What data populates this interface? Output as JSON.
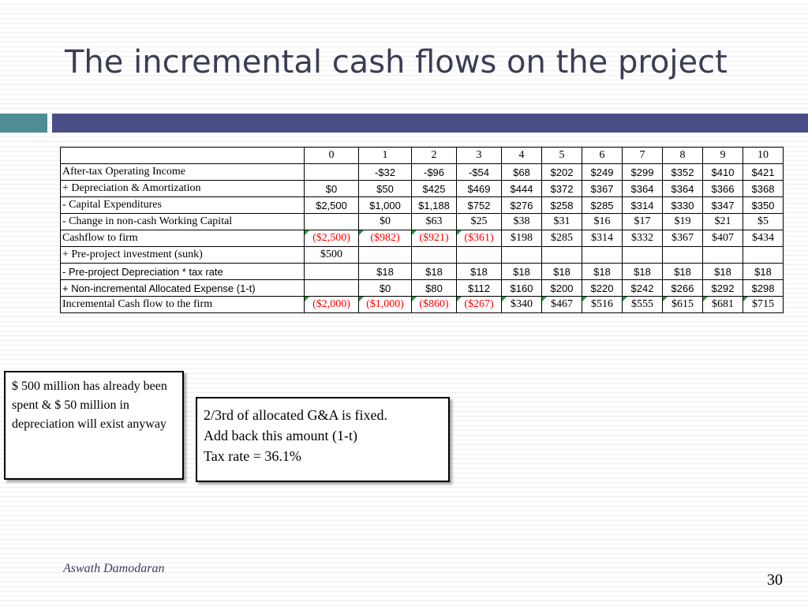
{
  "slide": {
    "title": "The incremental cash flows on the project",
    "author": "Aswath Damodaran",
    "page_number": "30"
  },
  "colors": {
    "title": "#3b3d55",
    "teal_bar": "#4e8d91",
    "navy_bar": "#4a4e86",
    "negative": "#ff0000",
    "flag": "#1e9e3a"
  },
  "table": {
    "header": [
      "0",
      "1",
      "2",
      "3",
      "4",
      "5",
      "6",
      "7",
      "8",
      "9",
      "10"
    ],
    "rows": [
      {
        "label": "After-tax Operating Income",
        "cells": [
          "",
          "-$32",
          "-$96",
          "-$54",
          "$68",
          "$202",
          "$249",
          "$299",
          "$352",
          "$410",
          "$421"
        ]
      },
      {
        "label": " + Depreciation & Amortization",
        "cells": [
          "$0",
          "$50",
          "$425",
          "$469",
          "$444",
          "$372",
          "$367",
          "$364",
          "$364",
          "$366",
          "$368"
        ]
      },
      {
        "label": " - Capital Expenditures",
        "cells": [
          "$2,500",
          "$1,000",
          "$1,188",
          "$752",
          "$276",
          "$258",
          "$285",
          "$314",
          "$330",
          "$347",
          "$350"
        ]
      },
      {
        "label": " - Change in non-cash Working Capital",
        "cells": [
          "",
          "$0",
          "$63",
          "$25",
          "$38",
          "$31",
          "$16",
          "$17",
          "$19",
          "$21",
          "$5"
        ]
      },
      {
        "label": "Cashflow to firm",
        "cells": [
          "($2,500)",
          "($982)",
          "($921)",
          "($361)",
          "$198",
          "$285",
          "$314",
          "$332",
          "$367",
          "$407",
          "$434"
        ]
      },
      {
        "label": " + Pre-project investment (sunk)",
        "cells": [
          "$500",
          "",
          "",
          "",
          "",
          "",
          "",
          "",
          "",
          "",
          ""
        ]
      },
      {
        "label": " - Pre-project Depreciation * tax rate",
        "cells": [
          "",
          "$18",
          "$18",
          "$18",
          "$18",
          "$18",
          "$18",
          "$18",
          "$18",
          "$18",
          "$18"
        ]
      },
      {
        "label": " + Non-incremental Allocated Expense (1-t)",
        "cells": [
          "",
          "$0",
          "$80",
          "$112",
          "$160",
          "$200",
          "$220",
          "$242",
          "$266",
          "$292",
          "$298"
        ]
      },
      {
        "label": "Incremental Cash flow to the firm",
        "cells": [
          "($2,000)",
          "($1,000)",
          "($860)",
          "($267)",
          "$340",
          "$467",
          "$516",
          "$555",
          "$615",
          "$681",
          "$715"
        ]
      }
    ]
  },
  "notes": {
    "left": "$ 500 million has already been spent & $ 50 million in depreciation will exist anyway",
    "middle_lines": [
      "2/3rd of allocated G&A is fixed.",
      "Add back this amount (1-t)",
      "Tax rate = 36.1%"
    ]
  }
}
